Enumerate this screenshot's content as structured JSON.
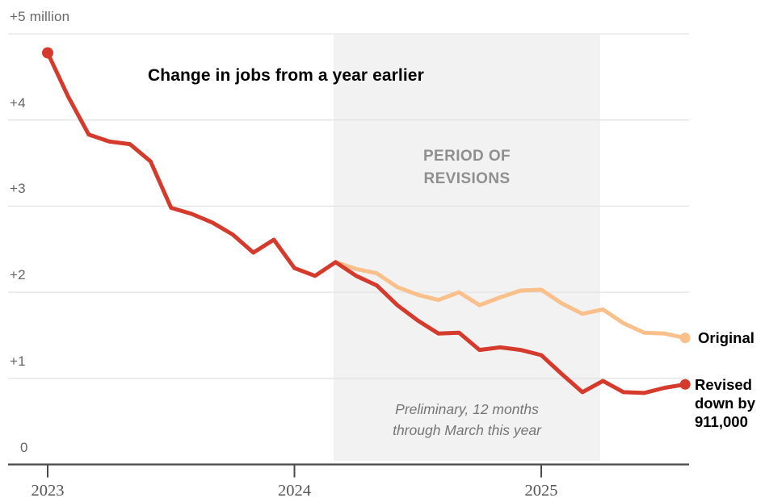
{
  "chart_data": {
    "type": "line",
    "title": "Change in jobs from a year earlier",
    "unit": "million jobs, year-over-year change",
    "x_start": "Jan 2023",
    "frequency": "monthly",
    "ylim": [
      0,
      5
    ],
    "grid": "horizontal",
    "y_ticks": [
      {
        "label": "0",
        "value": 0
      },
      {
        "label": "+1",
        "value": 1
      },
      {
        "label": "+2",
        "value": 2
      },
      {
        "label": "+3",
        "value": 3
      },
      {
        "label": "+4",
        "value": 4
      },
      {
        "label": "+5 million",
        "value": 5
      }
    ],
    "x_ticks": [
      {
        "label": "2023",
        "month_index": 0
      },
      {
        "label": "2024",
        "month_index": 12
      },
      {
        "label": "2025",
        "month_index": 24
      }
    ],
    "series": [
      {
        "name": "Original",
        "color": "#f9c08c",
        "start_month_index": 14,
        "start_label": "Mar 2024",
        "marker_start": false,
        "marker_end": true,
        "values": [
          2.35,
          2.27,
          2.22,
          2.06,
          1.97,
          1.91,
          2.0,
          1.85,
          1.94,
          2.02,
          2.03,
          1.87,
          1.75,
          1.8,
          1.64,
          1.53,
          1.52,
          1.47
        ]
      },
      {
        "name": "Revised down by 911,000",
        "color": "#d43b2c",
        "start_month_index": 0,
        "start_label": "Jan 2023",
        "marker_start": true,
        "marker_end": true,
        "values": [
          4.78,
          4.27,
          3.83,
          3.75,
          3.72,
          3.52,
          2.98,
          2.91,
          2.81,
          2.67,
          2.46,
          2.61,
          2.28,
          2.19,
          2.35,
          2.19,
          2.08,
          1.85,
          1.67,
          1.52,
          1.53,
          1.33,
          1.36,
          1.33,
          1.27,
          1.05,
          0.84,
          0.97,
          0.84,
          0.83,
          0.89,
          0.93
        ]
      }
    ],
    "annotations": {
      "period_label": "PERIOD OF REVISIONS",
      "note": "Preliminary, 12 months through March this year"
    },
    "colors": {
      "band": "#f2f2f2",
      "gridline": "#e3e3e3",
      "axis": "#4a4a4a",
      "y_label": "#666666",
      "x_label": "#565656",
      "period_label": "#8f8f8f",
      "note": "#757575",
      "title": "#000000"
    }
  }
}
